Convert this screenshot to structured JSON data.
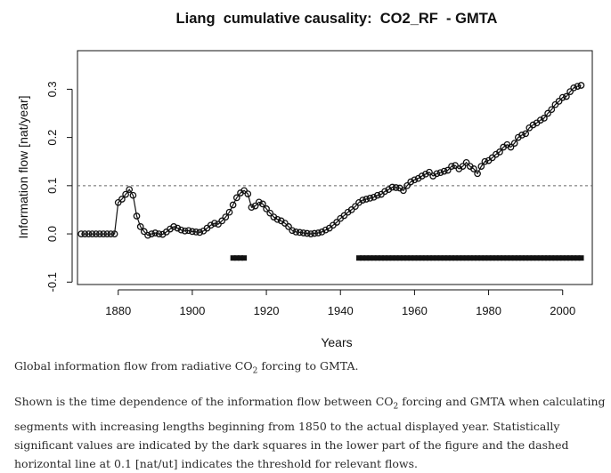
{
  "chart_data": {
    "type": "line",
    "title": "Liang  cumulative causality:  CO2_RF  - GMTA",
    "xlabel": "Years",
    "ylabel": "Information flow [nat/year]",
    "xlim": [
      1869,
      2008
    ],
    "ylim": [
      -0.105,
      0.38
    ],
    "xticks": [
      1880,
      1900,
      1920,
      1940,
      1960,
      1980,
      2000
    ],
    "yticks": [
      -0.1,
      0.0,
      0.1,
      0.2,
      0.3
    ],
    "ytick_labels": [
      "-0.1",
      "0.0",
      "0.1",
      "0.2",
      "0.3"
    ],
    "threshold": 0.1,
    "threshold_style": "dashed",
    "grid": false,
    "series": [
      {
        "marker": "open-circle",
        "x": [
          1870,
          1871,
          1872,
          1873,
          1874,
          1875,
          1876,
          1877,
          1878,
          1879,
          1880,
          1881,
          1882,
          1883,
          1884,
          1885,
          1886,
          1887,
          1888,
          1889,
          1890,
          1891,
          1892,
          1893,
          1894,
          1895,
          1896,
          1897,
          1898,
          1899,
          1900,
          1901,
          1902,
          1903,
          1904,
          1905,
          1906,
          1907,
          1908,
          1909,
          1910,
          1911,
          1912,
          1913,
          1914,
          1915,
          1916,
          1917,
          1918,
          1919,
          1920,
          1921,
          1922,
          1923,
          1924,
          1925,
          1926,
          1927,
          1928,
          1929,
          1930,
          1931,
          1932,
          1933,
          1934,
          1935,
          1936,
          1937,
          1938,
          1939,
          1940,
          1941,
          1942,
          1943,
          1944,
          1945,
          1946,
          1947,
          1948,
          1949,
          1950,
          1951,
          1952,
          1953,
          1954,
          1955,
          1956,
          1957,
          1958,
          1959,
          1960,
          1961,
          1962,
          1963,
          1964,
          1965,
          1966,
          1967,
          1968,
          1969,
          1970,
          1971,
          1972,
          1973,
          1974,
          1975,
          1976,
          1977,
          1978,
          1979,
          1980,
          1981,
          1982,
          1983,
          1984,
          1985,
          1986,
          1987,
          1988,
          1989,
          1990,
          1991,
          1992,
          1993,
          1994,
          1995,
          1996,
          1997,
          1998,
          1999,
          2000,
          2001,
          2002,
          2003,
          2004,
          2005
        ],
        "y": [
          0.0,
          0.0,
          0.0,
          0.0,
          0.0,
          0.0,
          0.0,
          0.0,
          0.0,
          0.0,
          0.065,
          0.072,
          0.082,
          0.092,
          0.08,
          0.037,
          0.015,
          0.005,
          -0.003,
          0.0,
          0.002,
          0.0,
          -0.001,
          0.004,
          0.01,
          0.015,
          0.012,
          0.008,
          0.006,
          0.007,
          0.005,
          0.004,
          0.003,
          0.006,
          0.012,
          0.018,
          0.022,
          0.02,
          0.027,
          0.035,
          0.045,
          0.06,
          0.075,
          0.085,
          0.09,
          0.083,
          0.055,
          0.058,
          0.066,
          0.062,
          0.052,
          0.043,
          0.035,
          0.03,
          0.027,
          0.022,
          0.015,
          0.007,
          0.004,
          0.003,
          0.002,
          0.001,
          0.0,
          0.001,
          0.002,
          0.004,
          0.008,
          0.012,
          0.018,
          0.024,
          0.032,
          0.038,
          0.045,
          0.05,
          0.057,
          0.065,
          0.07,
          0.072,
          0.074,
          0.076,
          0.08,
          0.082,
          0.088,
          0.092,
          0.097,
          0.096,
          0.095,
          0.09,
          0.1,
          0.108,
          0.112,
          0.115,
          0.12,
          0.124,
          0.128,
          0.12,
          0.125,
          0.127,
          0.13,
          0.132,
          0.14,
          0.142,
          0.135,
          0.14,
          0.148,
          0.14,
          0.135,
          0.125,
          0.14,
          0.15,
          0.152,
          0.158,
          0.165,
          0.17,
          0.18,
          0.185,
          0.18,
          0.188,
          0.2,
          0.205,
          0.208,
          0.22,
          0.226,
          0.23,
          0.236,
          0.24,
          0.25,
          0.258,
          0.268,
          0.275,
          0.283,
          0.285,
          0.295,
          0.303,
          0.306,
          0.308
        ]
      }
    ],
    "significance_level": -0.05,
    "significance_segments": [
      [
        1911,
        1914
      ],
      [
        1945,
        2005
      ]
    ]
  },
  "caption": {
    "title_prefix": "Global information flow from radiative CO",
    "title_sub": "2",
    "title_suffix": " forcing to GMTA.",
    "body_prefix": "Shown is the time dependence of the information flow between CO",
    "body_sub": "2",
    "body_suffix": " forcing and GMTA when calculating segments with increasing lengths beginning from 1850 to the actual displayed year. Statistically significant values are indicated by the dark squares in the lower part of the figure and the dashed horizontal line at 0.1 [nat/ut] indicates the threshold for relevant flows."
  }
}
